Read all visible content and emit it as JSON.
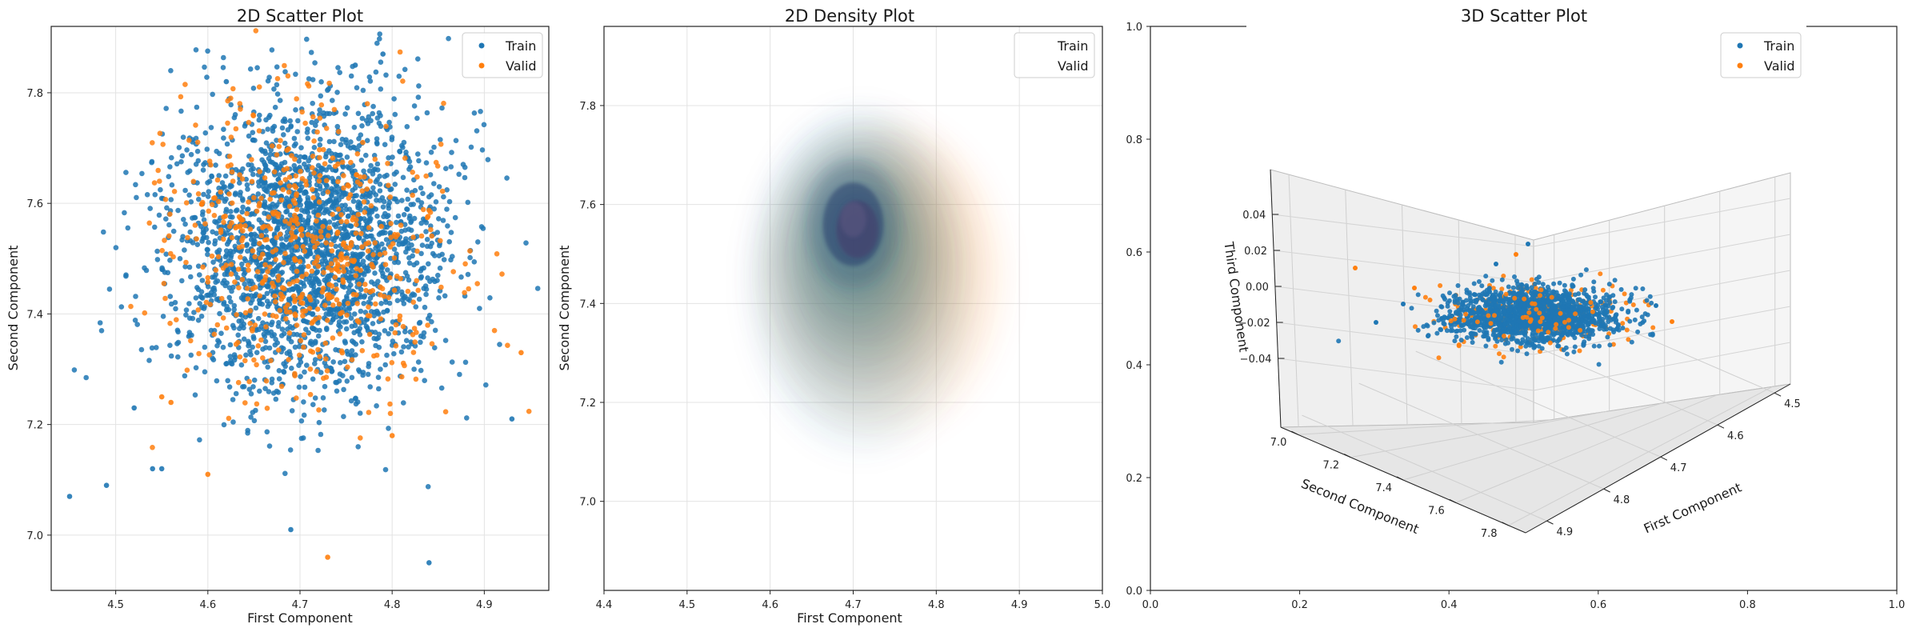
{
  "colors": {
    "train": "#1f77b4",
    "valid": "#ff7f0e"
  },
  "chart_data": [
    {
      "type": "scatter",
      "title": "2D Scatter Plot",
      "xlabel": "First Component",
      "ylabel": "Second Component",
      "xlim": [
        4.43,
        4.97
      ],
      "ylim": [
        6.9,
        7.92
      ],
      "xticks": [
        "4.5",
        "4.6",
        "4.7",
        "4.8",
        "4.9"
      ],
      "yticks": [
        "7.0",
        "7.2",
        "7.4",
        "7.6",
        "7.8"
      ],
      "grid": true,
      "legend": "top-right",
      "series": [
        {
          "name": "Train",
          "color": "#1f77b4",
          "distribution": {
            "count": 2400,
            "mean": [
              4.71,
              7.52
            ],
            "std": [
              0.075,
              0.13
            ]
          },
          "outliers": [
            [
              4.45,
              7.07
            ],
            [
              4.49,
              7.09
            ],
            [
              4.54,
              7.12
            ],
            [
              4.55,
              7.12
            ],
            [
              4.69,
              7.01
            ],
            [
              4.84,
              6.95
            ],
            [
              4.93,
              7.21
            ],
            [
              4.62,
              7.82
            ],
            [
              4.79,
              7.87
            ],
            [
              4.76,
              7.85
            ],
            [
              4.52,
              7.23
            ]
          ]
        },
        {
          "name": "Valid",
          "color": "#ff7f0e",
          "distribution": {
            "count": 600,
            "mean": [
              4.71,
              7.52
            ],
            "std": [
              0.075,
              0.13
            ]
          },
          "outliers": [
            [
              4.73,
              6.96
            ],
            [
              4.94,
              7.33
            ],
            [
              4.55,
              7.25
            ],
            [
              4.56,
              7.24
            ],
            [
              4.6,
              7.11
            ],
            [
              4.8,
              7.18
            ]
          ]
        }
      ]
    },
    {
      "type": "density",
      "title": "2D Density Plot",
      "xlabel": "First Component",
      "ylabel": "Second Component",
      "xlim": [
        4.4,
        5.0
      ],
      "ylim": [
        6.82,
        7.96
      ],
      "xticks": [
        "4.4",
        "4.5",
        "4.6",
        "4.7",
        "4.8",
        "4.9",
        "5.0"
      ],
      "yticks": [
        "7.0",
        "7.2",
        "7.4",
        "7.6",
        "7.8"
      ],
      "grid": true,
      "legend": "top-right",
      "series": [
        {
          "name": "Train",
          "color": "#1f77b4",
          "peak": [
            4.7,
            7.56
          ]
        },
        {
          "name": "Valid",
          "color": "#ff7f0e",
          "peak": [
            4.71,
            7.54
          ]
        }
      ]
    },
    {
      "type": "scatter3d",
      "title": "3D Scatter Plot",
      "xlabel": "First Component",
      "ylabel": "Second Component",
      "zlabel": "Third Component",
      "frame_xticks": [
        "0.0",
        "0.2",
        "0.4",
        "0.6",
        "0.8",
        "1.0"
      ],
      "frame_yticks": [
        "0.0",
        "0.2",
        "0.4",
        "0.6",
        "0.8",
        "1.0"
      ],
      "xticks": [
        "4.5",
        "4.6",
        "4.7",
        "4.8",
        "4.9"
      ],
      "yticks": [
        "7.0",
        "7.2",
        "7.4",
        "7.6",
        "7.8"
      ],
      "zticks": [
        "0.04",
        "0.02",
        "0.00",
        "−0.02",
        "−0.04"
      ],
      "legend": "top-right",
      "series": [
        {
          "name": "Train",
          "color": "#1f77b4"
        },
        {
          "name": "Valid",
          "color": "#ff7f0e"
        }
      ]
    }
  ]
}
